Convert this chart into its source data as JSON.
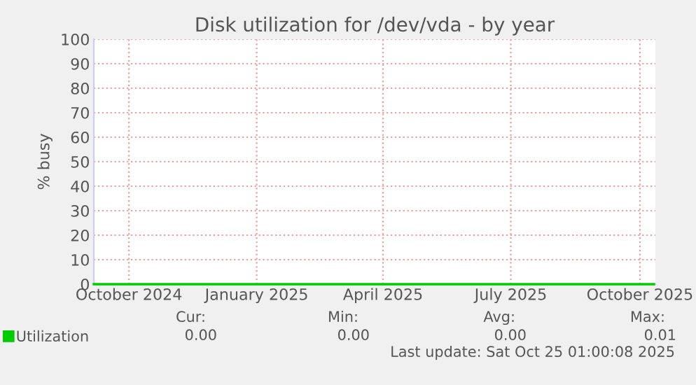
{
  "chart_data": {
    "type": "line",
    "title": "Disk utilization for /dev/vda - by year",
    "ylabel": "% busy",
    "xlim": [
      "2024-09-21",
      "2025-10-26"
    ],
    "xticks": [
      {
        "value": "2024-10-16",
        "label": "October 2024"
      },
      {
        "value": "2025-01-15",
        "label": "January 2025"
      },
      {
        "value": "2025-04-15",
        "label": "April 2025"
      },
      {
        "value": "2025-07-15",
        "label": "July 2025"
      },
      {
        "value": "2025-10-15",
        "label": "October 2025"
      }
    ],
    "ylim": [
      0,
      100
    ],
    "yticks": [
      0,
      10,
      20,
      30,
      40,
      50,
      60,
      70,
      80,
      90,
      100
    ],
    "grid": true,
    "legend": "bottom left",
    "marker": "none",
    "line_style": "solid",
    "series": [
      {
        "name": "Utilization",
        "color": "#00cc00",
        "x": [
          "2024-09-21",
          "2024-11-01",
          "2024-12-01",
          "2025-01-01",
          "2025-02-01",
          "2025-03-01",
          "2025-04-01",
          "2025-05-01",
          "2025-06-01",
          "2025-07-01",
          "2025-08-01",
          "2025-09-01",
          "2025-10-01",
          "2025-10-25"
        ],
        "values": [
          0,
          0,
          0,
          0,
          0,
          0,
          0,
          0,
          0,
          0,
          0,
          0,
          0,
          0
        ]
      }
    ],
    "annotations": [
      "Cur:",
      "Min:",
      "Avg:",
      "Max:",
      "0.00",
      "0.00",
      "0.00",
      "0.01",
      "Last update: Sat Oct 25 01:00:08 2025"
    ]
  }
}
